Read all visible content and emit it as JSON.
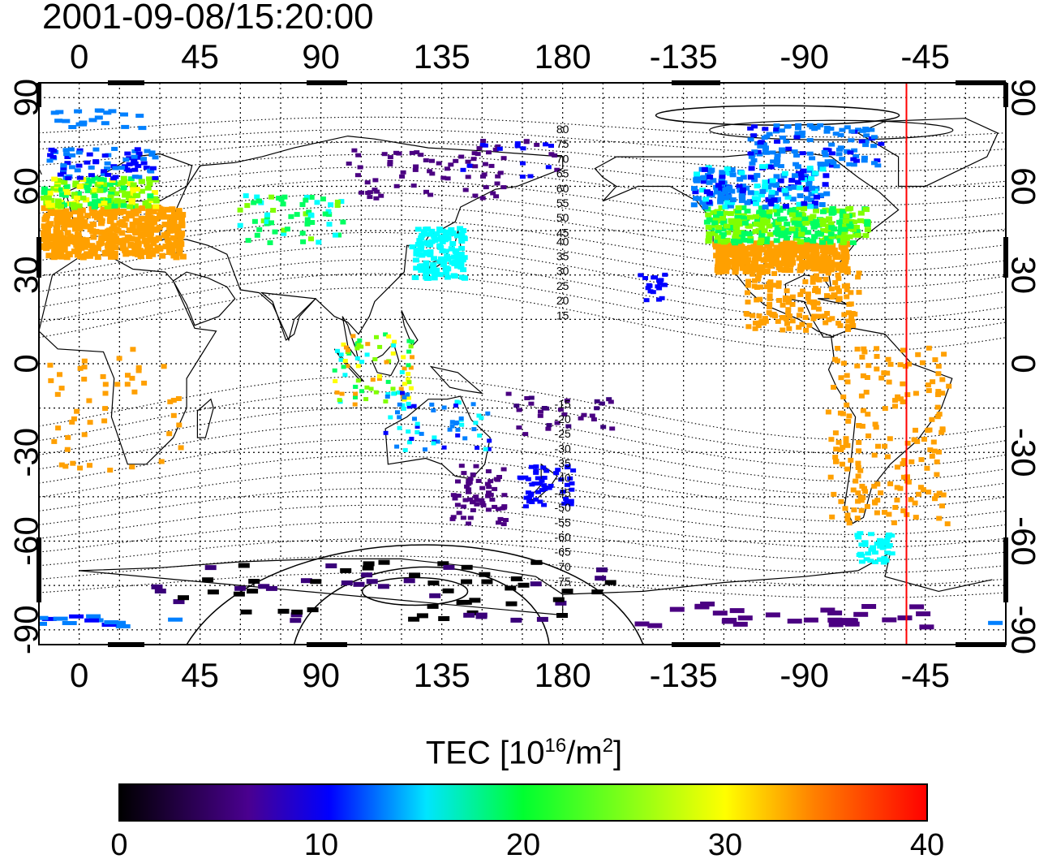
{
  "title": "2001-09-08/15:20:00",
  "map": {
    "projection": "cylindrical equidistant",
    "central_longitude": 150,
    "top_lon_labels": [
      "0",
      "45",
      "90",
      "135",
      "180",
      "-135",
      "-90",
      "-45"
    ],
    "bottom_lon_labels": [
      "0",
      "45",
      "90",
      "135",
      "180",
      "-135",
      "-90",
      "-45"
    ],
    "left_lat_labels": [
      "90",
      "60",
      "30",
      "0",
      "-30",
      "-60",
      "-90"
    ],
    "right_lat_labels": [
      "90",
      "60",
      "30",
      "0",
      "-30",
      "-60",
      "-90"
    ],
    "grid": "dotted 15°",
    "contour_labels_north": [
      "80",
      "75",
      "70",
      "65",
      "60",
      "55",
      "50",
      "45",
      "40",
      "35",
      "30",
      "25",
      "20",
      "15"
    ],
    "contour_labels_south": [
      "-15",
      "-20",
      "-25",
      "-30",
      "-35",
      "-40",
      "-45",
      "-50",
      "-55",
      "-60",
      "-65",
      "-70",
      "-75"
    ],
    "subsolar_line_longitude": -52,
    "colors": {
      "grid": "#000000",
      "marker_line": "#ff0000"
    }
  },
  "colorbar": {
    "title_main": "TEC  [10",
    "title_sup1": "16",
    "title_mid": "/m",
    "title_sup2": "2",
    "title_end": "]",
    "min": 0,
    "max": 40,
    "tick_labels": [
      "0",
      "10",
      "20",
      "30",
      "40"
    ],
    "colormap": [
      "#000000",
      "#3a007a",
      "#0000ff",
      "#00ffff",
      "#00ff00",
      "#ffff00",
      "#ff0000"
    ]
  }
}
